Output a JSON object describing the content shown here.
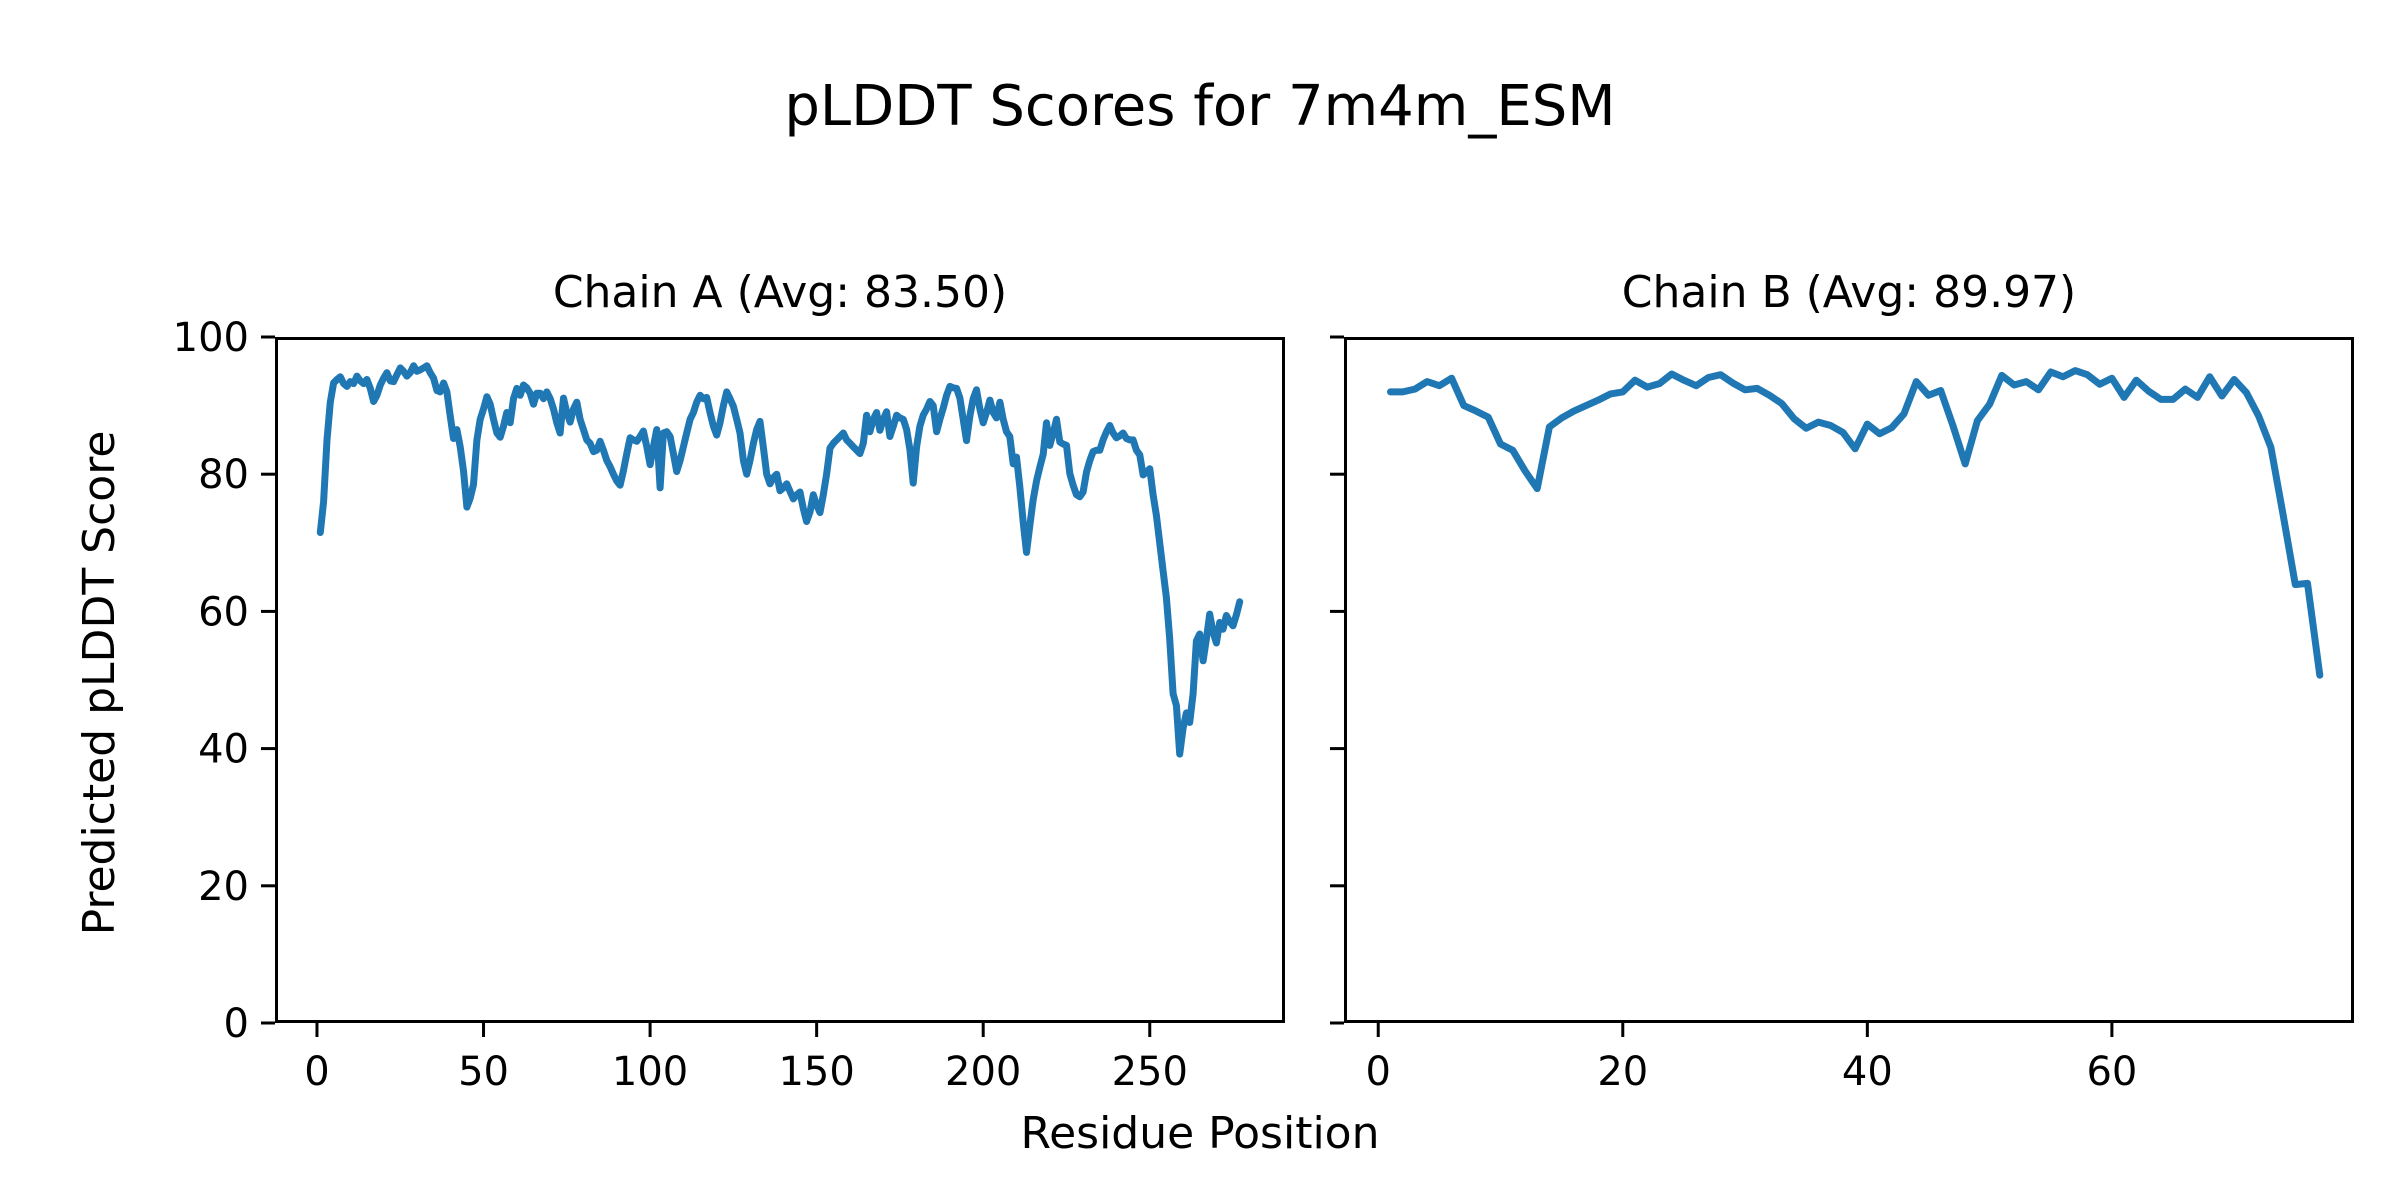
{
  "figure": {
    "title": "pLDDT Scores for 7m4m_ESM",
    "xlabel": "Residue Position",
    "ylabel": "Predicted pLDDT Score",
    "background": "#ffffff",
    "text_color": "#000000",
    "spine_color": "#000000"
  },
  "chart_data": [
    {
      "type": "line",
      "title": "Chain A (Avg: 83.50)",
      "chain": "A",
      "avg": 83.5,
      "xticks": [
        0,
        50,
        100,
        150,
        200,
        250
      ],
      "yticks": [
        0,
        20,
        40,
        60,
        80,
        100
      ],
      "xlim": [
        -12.6,
        290.6
      ],
      "ylim": [
        0,
        100
      ],
      "grid": false,
      "legend": "none",
      "line_color": "#1f77b4",
      "show_ytick_labels": true,
      "series": [
        {
          "name": "Chain A pLDDT",
          "x0": 1,
          "y": [
            71.5,
            76,
            85,
            90.5,
            93.3,
            93.8,
            94.2,
            93.2,
            92.8,
            93.5,
            93.2,
            94.3,
            93.6,
            93.2,
            93.8,
            92.5,
            90.6,
            91.5,
            93,
            94,
            94.8,
            93.6,
            93.5,
            94.5,
            95.5,
            95,
            94.3,
            94.8,
            95.8,
            95,
            95.2,
            95.5,
            95.8,
            94.8,
            94,
            92.2,
            92,
            93.3,
            92,
            88.5,
            85.2,
            86.5,
            84,
            80.5,
            75.2,
            76.5,
            78.5,
            85,
            88,
            89.5,
            91.3,
            90.2,
            88,
            86,
            85.4,
            87,
            89,
            87.5,
            91,
            92.5,
            91.5,
            93,
            92.6,
            91.8,
            90.2,
            91.8,
            91.8,
            91,
            92,
            91,
            89.5,
            87.5,
            86,
            91.1,
            89,
            87.6,
            89.5,
            90.5,
            88,
            86.5,
            85,
            84.5,
            83.3,
            83.5,
            84.8,
            83.5,
            82,
            81.1,
            80,
            79,
            78.4,
            80.5,
            83,
            85.3,
            85,
            84.8,
            85.5,
            86.3,
            84,
            81.4,
            84,
            86.5,
            78,
            86,
            86.2,
            85.5,
            83,
            80.4,
            82,
            84,
            86,
            88,
            89,
            90.5,
            91.5,
            91,
            91.2,
            89,
            87,
            85.7,
            87.5,
            90,
            92,
            91,
            89.9,
            88,
            86,
            82,
            80,
            82,
            84.5,
            86.5,
            87.7,
            84,
            80,
            78.6,
            79.5,
            80,
            77.6,
            78,
            78.6,
            77.5,
            76.4,
            77,
            77.4,
            75,
            73.1,
            74.5,
            77,
            75.5,
            74.4,
            77,
            80,
            83.8,
            84.5,
            85,
            85.5,
            86,
            85,
            84.5,
            84,
            83.5,
            83,
            84.5,
            88.6,
            86.2,
            88,
            89,
            86.4,
            88,
            89.1,
            85.5,
            87,
            88.6,
            88.2,
            88,
            86.5,
            83.6,
            78.7,
            84,
            87,
            88.6,
            89.5,
            90.6,
            90,
            86.2,
            88,
            89.6,
            91.5,
            92.8,
            92.6,
            92.5,
            91.1,
            88,
            84.9,
            88.5,
            91,
            92.3,
            89.5,
            87.5,
            89,
            90.8,
            89,
            88.2,
            90.5,
            88,
            86.2,
            85.5,
            81.5,
            82.5,
            78.2,
            73,
            68.6,
            72.5,
            76.3,
            79,
            81,
            82.9,
            87.5,
            84.2,
            86,
            88,
            84.7,
            84.4,
            84.2,
            80.1,
            78.4,
            77,
            76.7,
            77.4,
            80.3,
            82,
            83.3,
            83.5,
            83.5,
            85,
            86.2,
            87.1,
            86,
            85.3,
            85.6,
            86,
            85.2,
            85,
            85,
            83.5,
            82.8,
            79.9,
            80.3,
            80.8,
            77,
            74,
            70,
            65.9,
            62,
            56,
            48,
            46.3,
            39.2,
            43,
            45.2,
            43.8,
            48,
            55.7,
            56.7,
            52.8,
            56,
            59.6,
            57,
            55.4,
            58.4,
            57.4,
            59.4,
            58.5,
            57.9,
            59.5,
            61.4
          ]
        }
      ]
    },
    {
      "type": "line",
      "title": "Chain B (Avg: 89.97)",
      "chain": "B",
      "avg": 89.97,
      "xticks": [
        0,
        20,
        40,
        60
      ],
      "yticks": [
        0,
        20,
        40,
        60,
        80,
        100
      ],
      "xlim": [
        -2.8,
        79.8
      ],
      "ylim": [
        0,
        100
      ],
      "grid": false,
      "legend": "none",
      "line_color": "#1f77b4",
      "show_ytick_labels": false,
      "series": [
        {
          "name": "Chain B pLDDT",
          "x0": 1,
          "y": [
            92,
            92,
            92.4,
            93.5,
            92.9,
            94,
            90,
            89.2,
            88.3,
            84.4,
            83.5,
            80.5,
            77.9,
            86.9,
            88.2,
            89.2,
            90,
            90.8,
            91.7,
            92,
            93.7,
            92.7,
            93.2,
            94.6,
            93.7,
            92.9,
            94.1,
            94.5,
            93.3,
            92.3,
            92.5,
            91.5,
            90.3,
            88.1,
            86.7,
            87.6,
            87.1,
            86.1,
            83.7,
            87.3,
            85.9,
            86.8,
            88.8,
            93.5,
            91.5,
            92.2,
            87.1,
            81.5,
            87.8,
            90.2,
            94.4,
            93,
            93.5,
            92.3,
            94.9,
            94.2,
            95.1,
            94.5,
            93.1,
            94,
            91.2,
            93.7,
            92.1,
            90.9,
            90.9,
            92.4,
            91.2,
            94.2,
            91.4,
            93.8,
            91.9,
            88.5,
            83.9,
            74.1,
            63.9,
            64.1,
            50.7
          ]
        }
      ]
    }
  ]
}
